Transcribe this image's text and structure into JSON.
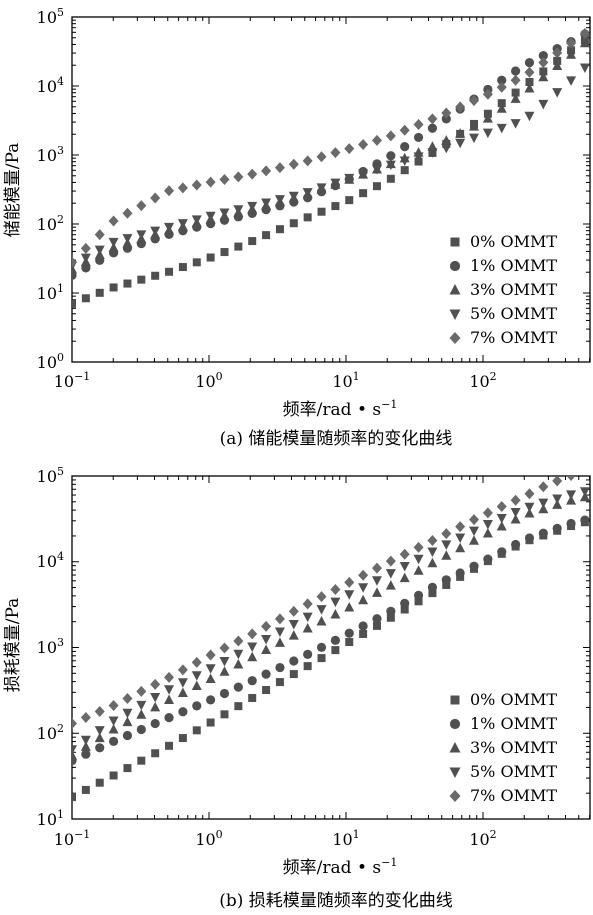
{
  "series_names": [
    "0% OMMT",
    "1% OMMT",
    "3% OMMT",
    "5% OMMT",
    "7% OMMT"
  ],
  "colors": {
    "marker": "#505050",
    "marker_diamond": "#6a6a6a",
    "axis": "#000000"
  },
  "chart_data": [
    {
      "type": "scatter",
      "caption": "(a) 储能模量随频率的变化曲线",
      "xlabel": "频率/rad • s",
      "xlabel_sup": "−1",
      "ylabel": "储能模量/Pa",
      "xscale": "log",
      "yscale": "log",
      "xlim": [
        0.1,
        700
      ],
      "ylim": [
        1,
        100000
      ],
      "x_ticks": [
        {
          "base": "10",
          "exp": "−1"
        },
        {
          "base": "10",
          "exp": "0"
        },
        {
          "base": "10",
          "exp": "1"
        },
        {
          "base": "10",
          "exp": "2"
        }
      ],
      "y_ticks": [
        {
          "base": "10",
          "exp": "0"
        },
        {
          "base": "10",
          "exp": "1"
        },
        {
          "base": "10",
          "exp": "2"
        },
        {
          "base": "10",
          "exp": "3"
        },
        {
          "base": "10",
          "exp": "4"
        },
        {
          "base": "10",
          "exp": "5"
        }
      ],
      "legend": "center-right",
      "grid": false,
      "series": [
        {
          "name": "0% OMMT",
          "marker": "square",
          "points": [
            [
              0.1,
              7
            ],
            [
              0.2,
              12
            ],
            [
              0.5,
              20
            ],
            [
              1,
              32
            ],
            [
              2,
              55
            ],
            [
              5,
              120
            ],
            [
              10,
              210
            ],
            [
              20,
              420
            ],
            [
              50,
              1300
            ],
            [
              100,
              3500
            ],
            [
              200,
              10000
            ],
            [
              500,
              40000
            ],
            [
              700,
              62000
            ]
          ]
        },
        {
          "name": "1% OMMT",
          "marker": "circle",
          "points": [
            [
              0.1,
              18
            ],
            [
              0.2,
              38
            ],
            [
              0.5,
              70
            ],
            [
              1,
              100
            ],
            [
              2,
              140
            ],
            [
              5,
              230
            ],
            [
              10,
              420
            ],
            [
              20,
              900
            ],
            [
              50,
              3000
            ],
            [
              100,
              8000
            ],
            [
              200,
              20000
            ],
            [
              500,
              50000
            ],
            [
              700,
              75000
            ]
          ]
        },
        {
          "name": "3% OMMT",
          "marker": "triangle-up",
          "points": [
            [
              0.1,
              22
            ],
            [
              0.2,
              45
            ],
            [
              0.5,
              80
            ],
            [
              1,
              115
            ],
            [
              2,
              160
            ],
            [
              5,
              260
            ],
            [
              10,
              420
            ],
            [
              20,
              700
            ],
            [
              50,
              1500
            ],
            [
              100,
              3000
            ],
            [
              200,
              8000
            ],
            [
              500,
              35000
            ],
            [
              700,
              62000
            ]
          ]
        },
        {
          "name": "5% OMMT",
          "marker": "triangle-down",
          "points": [
            [
              0.1,
              25
            ],
            [
              0.2,
              55
            ],
            [
              0.5,
              90
            ],
            [
              1,
              130
            ],
            [
              2,
              180
            ],
            [
              5,
              280
            ],
            [
              10,
              450
            ],
            [
              20,
              700
            ],
            [
              50,
              1200
            ],
            [
              100,
              2000
            ],
            [
              200,
              3200
            ],
            [
              500,
              15000
            ],
            [
              700,
              30000
            ]
          ]
        },
        {
          "name": "7% OMMT",
          "marker": "diamond",
          "points": [
            [
              0.1,
              28
            ],
            [
              0.2,
              110
            ],
            [
              0.5,
              300
            ],
            [
              1,
              400
            ],
            [
              2,
              520
            ],
            [
              5,
              800
            ],
            [
              10,
              1200
            ],
            [
              20,
              1800
            ],
            [
              50,
              3800
            ],
            [
              100,
              7000
            ],
            [
              200,
              14000
            ],
            [
              500,
              50000
            ],
            [
              700,
              80000
            ]
          ]
        }
      ]
    },
    {
      "type": "scatter",
      "caption": "(b) 损耗模量随频率的变化曲线",
      "xlabel": "频率/rad • s",
      "xlabel_sup": "−1",
      "ylabel": "损耗模量/Pa",
      "xscale": "log",
      "yscale": "log",
      "xlim": [
        0.1,
        700
      ],
      "ylim": [
        10,
        100000
      ],
      "x_ticks": [
        {
          "base": "10",
          "exp": "−1"
        },
        {
          "base": "10",
          "exp": "0"
        },
        {
          "base": "10",
          "exp": "1"
        },
        {
          "base": "10",
          "exp": "2"
        }
      ],
      "y_ticks": [
        {
          "base": "10",
          "exp": "1"
        },
        {
          "base": "10",
          "exp": "2"
        },
        {
          "base": "10",
          "exp": "3"
        },
        {
          "base": "10",
          "exp": "4"
        },
        {
          "base": "10",
          "exp": "5"
        }
      ],
      "legend": "bottom-right",
      "grid": false,
      "series": [
        {
          "name": "0% OMMT",
          "marker": "square",
          "points": [
            [
              0.1,
              18
            ],
            [
              0.2,
              32
            ],
            [
              0.5,
              70
            ],
            [
              1,
              130
            ],
            [
              2,
              250
            ],
            [
              5,
              580
            ],
            [
              10,
              1100
            ],
            [
              20,
              2100
            ],
            [
              50,
              5000
            ],
            [
              100,
              9500
            ],
            [
              200,
              17000
            ],
            [
              500,
              28000
            ],
            [
              700,
              31000
            ]
          ]
        },
        {
          "name": "1% OMMT",
          "marker": "circle",
          "points": [
            [
              0.1,
              48
            ],
            [
              0.2,
              80
            ],
            [
              0.5,
              150
            ],
            [
              1,
              240
            ],
            [
              2,
              400
            ],
            [
              5,
              800
            ],
            [
              10,
              1400
            ],
            [
              20,
              2500
            ],
            [
              50,
              5800
            ],
            [
              100,
              10000
            ],
            [
              200,
              18000
            ],
            [
              500,
              30000
            ],
            [
              700,
              32000
            ]
          ]
        },
        {
          "name": "3% OMMT",
          "marker": "triangle-up",
          "points": [
            [
              0.1,
              55
            ],
            [
              0.2,
              110
            ],
            [
              0.5,
              240
            ],
            [
              1,
              420
            ],
            [
              2,
              750
            ],
            [
              5,
              1600
            ],
            [
              10,
              2800
            ],
            [
              20,
              5000
            ],
            [
              50,
              11000
            ],
            [
              100,
              20000
            ],
            [
              200,
              35000
            ],
            [
              500,
              55000
            ],
            [
              700,
              60000
            ]
          ]
        },
        {
          "name": "5% OMMT",
          "marker": "triangle-down",
          "points": [
            [
              0.1,
              65
            ],
            [
              0.2,
              140
            ],
            [
              0.5,
              320
            ],
            [
              1,
              560
            ],
            [
              2,
              1000
            ],
            [
              5,
              2200
            ],
            [
              10,
              4000
            ],
            [
              20,
              7000
            ],
            [
              50,
              15000
            ],
            [
              100,
              26000
            ],
            [
              200,
              42000
            ],
            [
              500,
              65000
            ],
            [
              700,
              70000
            ]
          ]
        },
        {
          "name": "7% OMMT",
          "marker": "diamond",
          "points": [
            [
              0.1,
              130
            ],
            [
              0.2,
              210
            ],
            [
              0.5,
              440
            ],
            [
              1,
              800
            ],
            [
              2,
              1400
            ],
            [
              5,
              3100
            ],
            [
              10,
              5500
            ],
            [
              20,
              9700
            ],
            [
              50,
              20000
            ],
            [
              100,
              35000
            ],
            [
              200,
              58000
            ],
            [
              300,
              80000
            ],
            [
              500,
              110000
            ],
            [
              700,
              130000
            ]
          ]
        }
      ]
    }
  ]
}
